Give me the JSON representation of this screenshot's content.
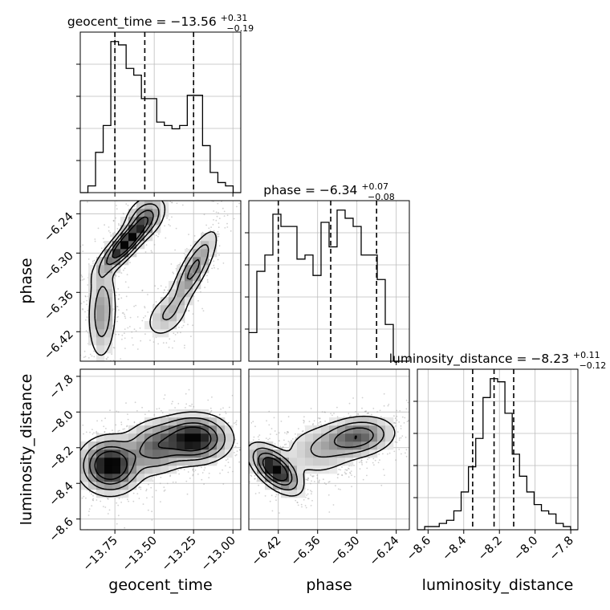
{
  "chart_data": {
    "type": "corner",
    "parameters": [
      {
        "name": "geocent_time",
        "label": "geocent_time",
        "range": [
          -13.97,
          -12.95
        ],
        "ticks": [
          -13.75,
          -13.5,
          -13.25,
          -13.0
        ],
        "tick_labels": [
          "−13.75",
          "−13.50",
          "−13.25",
          "−13.00"
        ],
        "quantiles": [
          -13.75,
          -13.56,
          -13.25
        ],
        "title_main": "geocent_time = −13.56",
        "title_sup": "+0.31",
        "title_sub": "−0.19",
        "hist": [
          0,
          2,
          12,
          20,
          45,
          44,
          37,
          35,
          28,
          28,
          21,
          20,
          19,
          20,
          29,
          29,
          14,
          6,
          3,
          2,
          0
        ]
      },
      {
        "name": "phase",
        "label": "phase",
        "range": [
          -6.465,
          -6.22
        ],
        "ticks": [
          -6.42,
          -6.36,
          -6.3,
          -6.24
        ],
        "tick_labels": [
          "−6.42",
          "−6.36",
          "−6.30",
          "−6.24"
        ],
        "quantiles": [
          -6.42,
          -6.34,
          -6.27
        ],
        "title_main": "phase = −6.34",
        "title_sup": "+0.07",
        "title_sub": "−0.08",
        "hist": [
          7,
          22,
          26,
          36,
          33,
          33,
          25,
          26,
          21,
          34,
          28,
          37,
          35,
          33,
          26,
          26,
          20,
          9,
          0,
          0
        ]
      },
      {
        "name": "luminosity_distance",
        "label": "luminosity_distance",
        "range": [
          -8.66,
          -7.76
        ],
        "ticks": [
          -8.6,
          -8.4,
          -8.2,
          -8.0,
          -7.8
        ],
        "tick_labels": [
          "−8.6",
          "−8.4",
          "−8.2",
          "−8.0",
          "−7.8"
        ],
        "quantiles": [
          -8.35,
          -8.23,
          -8.12
        ],
        "title_main": "luminosity_distance = −8.23",
        "title_sup": "+0.11",
        "title_sub": "−0.12",
        "hist": [
          0,
          1,
          1,
          2,
          3,
          6,
          12,
          20,
          29,
          42,
          48,
          47,
          37,
          24,
          17,
          12,
          8,
          6,
          5,
          2,
          1,
          0
        ]
      }
    ],
    "pairs": [
      {
        "x": "geocent_time",
        "y": "phase",
        "blobs": [
          {
            "cx": -13.68,
            "cy": -6.285,
            "sx": 0.09,
            "sy": 0.024,
            "rho": 0.85,
            "w": 0.32
          },
          {
            "cx": -13.56,
            "cy": -6.245,
            "sx": 0.07,
            "sy": 0.018,
            "rho": 0.3,
            "w": 0.14
          },
          {
            "cx": -13.83,
            "cy": -6.39,
            "sx": 0.05,
            "sy": 0.04,
            "rho": 0.1,
            "w": 0.22
          },
          {
            "cx": -13.25,
            "cy": -6.325,
            "sx": 0.08,
            "sy": 0.032,
            "rho": 0.8,
            "w": 0.22
          },
          {
            "cx": -13.42,
            "cy": -6.395,
            "sx": 0.08,
            "sy": 0.02,
            "rho": 0.4,
            "w": 0.1
          }
        ]
      },
      {
        "x": "geocent_time",
        "y": "luminosity_distance",
        "blobs": [
          {
            "cx": -13.78,
            "cy": -8.3,
            "sx": 0.1,
            "sy": 0.08,
            "rho": 0.0,
            "w": 0.4
          },
          {
            "cx": -13.25,
            "cy": -8.15,
            "sx": 0.12,
            "sy": 0.07,
            "rho": 0.0,
            "w": 0.4
          },
          {
            "cx": -13.5,
            "cy": -8.2,
            "sx": 0.1,
            "sy": 0.08,
            "rho": 0.0,
            "w": 0.2
          }
        ]
      },
      {
        "x": "phase",
        "y": "luminosity_distance",
        "blobs": [
          {
            "cx": -6.425,
            "cy": -8.32,
            "sx": 0.02,
            "sy": 0.07,
            "rho": -0.6,
            "w": 0.4
          },
          {
            "cx": -6.3,
            "cy": -8.14,
            "sx": 0.03,
            "sy": 0.06,
            "rho": 0.2,
            "w": 0.4
          },
          {
            "cx": -6.36,
            "cy": -8.22,
            "sx": 0.03,
            "sy": 0.08,
            "rho": 0.0,
            "w": 0.2
          }
        ]
      }
    ],
    "colors": {
      "line": "#000000",
      "points": "#9a9a9a",
      "grid": "#bdbdbd"
    },
    "grid": true
  }
}
